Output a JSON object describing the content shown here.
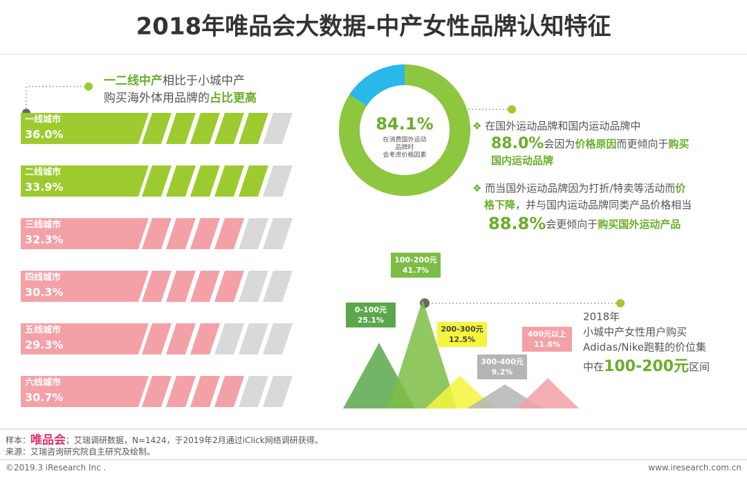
{
  "title": "2018年唯品会大数据-中产女性品牌认知特征",
  "left_note": [
    "一二线中产",
    "相比于小城中产",
    "购买海外体用品牌的",
    "占比更高"
  ],
  "findings": [
    [
      "在国外运动品牌和国内运动品牌中",
      "88.0%",
      "会因为",
      "价格原因",
      "而更倾向于",
      "购买",
      "国内运动品牌"
    ],
    [
      "而当国外运动品牌因为打折/特卖等活动而",
      "价",
      "格下降",
      "，并与国内运动品牌同类产品价格相当",
      "88.8%",
      "会更倾向于",
      "购买国外运动产品"
    ]
  ],
  "chart_data": [
    {
      "type": "bar",
      "categories": [
        "一线城市",
        "二线城市",
        "三线城市",
        "四线城市",
        "五线城市",
        "六线城市"
      ],
      "values": [
        36.0,
        33.9,
        32.3,
        30.3,
        29.3,
        30.7
      ],
      "value_labels": [
        "36.0%",
        "33.9%",
        "32.3%",
        "30.3%",
        "29.3%",
        "30.7%"
      ],
      "colors": [
        "#9dcb2f",
        "#9dcb2f",
        "#f3a1a7",
        "#f3a1a7",
        "#f3a1a7",
        "#f3a1a7"
      ],
      "xlim": [
        0,
        40
      ]
    },
    {
      "type": "pie",
      "values": [
        84.1,
        15.9
      ],
      "value_labels": [
        "84.1%",
        null
      ],
      "colors": [
        "#8dc63f",
        "#29b8ea"
      ],
      "caption": [
        "在消费国外运动",
        "品牌时",
        "会考虑价格因素"
      ]
    },
    {
      "type": "triangle",
      "categories": [
        "0-100元",
        "100-200元",
        "200-300元",
        "300-400元",
        "400元以上"
      ],
      "values": [
        25.1,
        41.7,
        12.5,
        9.2,
        11.6
      ],
      "value_labels": [
        "25.1%",
        "41.7%",
        "12.5%",
        "9.2%",
        "11.6%"
      ],
      "colors": [
        "#5aa84b",
        "#7cbd45",
        "#f6f43c",
        "#b5b5b5",
        "#f3a1a7"
      ],
      "ylim": [
        0,
        45
      ],
      "annotation": [
        "2018年",
        "小城中产女性用户购买",
        "Adidas/Nike跑鞋的价位集",
        "中在",
        "100-200元",
        "区间"
      ]
    }
  ],
  "footer": {
    "sample_label": "样本：",
    "brand": "唯品会",
    "sample": "；艾瑞调研数据，N=1424，于2019年2月通过iClick网络调研获得。",
    "source": "来源：艾瑞咨询研究院自主研究及绘制。",
    "copyright": "©2019.3 iResearch Inc .",
    "website": "www.iresearch.com.cn"
  }
}
